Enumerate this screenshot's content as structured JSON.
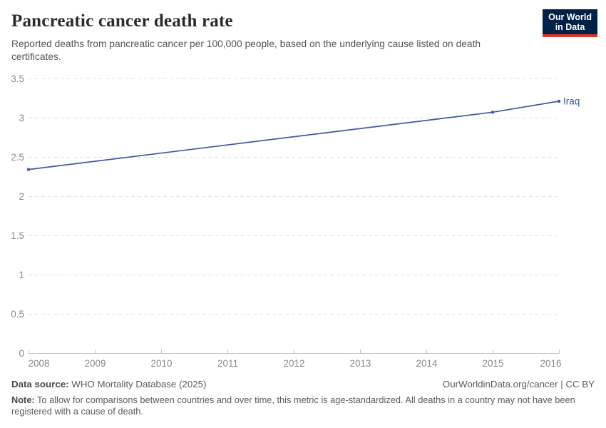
{
  "header": {
    "title": "Pancreatic cancer death rate",
    "subtitle": "Reported deaths from pancreatic cancer per 100,000 people, based on the underlying cause listed on death certificates."
  },
  "logo": {
    "line1": "Our World",
    "line2": "in Data"
  },
  "chart_data": {
    "type": "line",
    "title": "Pancreatic cancer death rate",
    "series": [
      {
        "name": "Iraq",
        "color": "#3b5b9a",
        "points": [
          [
            2008,
            2.34
          ],
          [
            2015,
            3.07
          ],
          [
            2016,
            3.21
          ]
        ]
      }
    ],
    "xticks": [
      2008,
      2009,
      2010,
      2011,
      2012,
      2013,
      2014,
      2015,
      2016
    ],
    "yticks": [
      0,
      0.5,
      1,
      1.5,
      2,
      2.5,
      3,
      3.5
    ],
    "xlim": [
      2008,
      2016
    ],
    "ylim": [
      0,
      3.5
    ],
    "grid": "horizontal-dashed",
    "legend_position": "end-of-line-label"
  },
  "colors": {
    "line": "#3b5b9a",
    "grid": "#e1e1e1",
    "axis": "#c8c8c8",
    "tick": "#bdbdbd",
    "tick_text": "#8a8a8a",
    "logo_bg": "#002147",
    "logo_accent": "#dc352c"
  },
  "footer": {
    "source_label": "Data source:",
    "source_value": "WHO Mortality Database (2025)",
    "attribution": "OurWorldinData.org/cancer | CC BY",
    "note_label": "Note:",
    "note_value": "To allow for comparisons between countries and over time, this metric is age-standardized. All deaths in a country may not have been registered with a cause of death."
  }
}
